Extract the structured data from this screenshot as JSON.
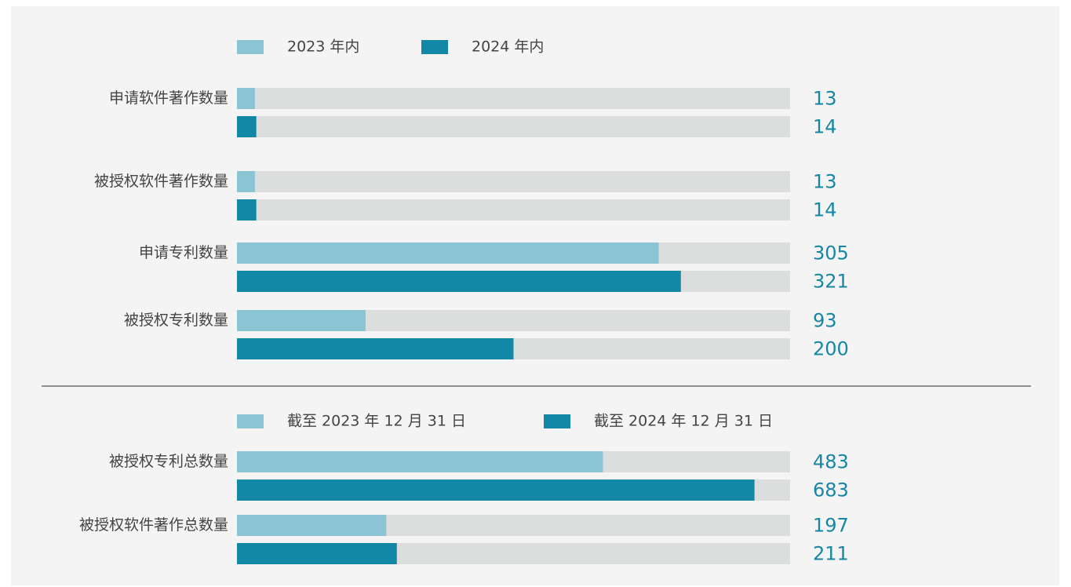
{
  "chart_data": [
    {
      "type": "bar",
      "orientation": "horizontal",
      "categories": [
        "申请软件著作数量",
        "被授权软件著作数量",
        "申请专利数量",
        "被授权专利数量"
      ],
      "series": [
        {
          "name": "2023 年内",
          "color": "#8bc5d3",
          "values": [
            13,
            13,
            305,
            93
          ]
        },
        {
          "name": "2024 年内",
          "color": "#1388a6",
          "values": [
            14,
            14,
            321,
            200
          ]
        }
      ],
      "xlim": [
        0,
        400
      ]
    },
    {
      "type": "bar",
      "orientation": "horizontal",
      "categories": [
        "被授权专利总数量",
        "被授权软件著作总数量"
      ],
      "series": [
        {
          "name": "截至 2023 年 12 月 31 日",
          "color": "#8bc5d3",
          "values": [
            483,
            197
          ]
        },
        {
          "name": "截至 2024 年 12 月 31 日",
          "color": "#1388a6",
          "values": [
            683,
            211
          ]
        }
      ],
      "xlim": [
        0,
        730
      ]
    }
  ]
}
